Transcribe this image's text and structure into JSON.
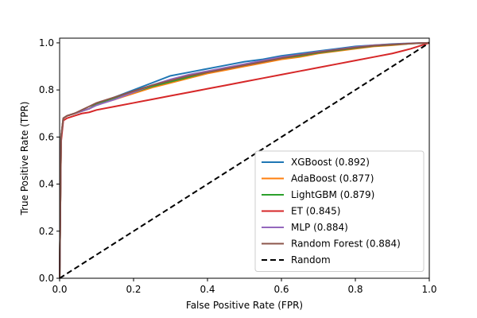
{
  "chart_data": {
    "type": "line",
    "xlabel": "False Positive Rate (FPR)",
    "ylabel": "True Positive Rate (TPR)",
    "xlim": [
      0,
      1
    ],
    "ylim": [
      0,
      1.02
    ],
    "xticks": [
      "0.0",
      "0.2",
      "0.4",
      "0.6",
      "0.8",
      "1.0"
    ],
    "yticks": [
      "0.0",
      "0.2",
      "0.4",
      "0.6",
      "0.8",
      "1.0"
    ],
    "grid": false,
    "legend_position": "lower-right",
    "series": [
      {
        "name": "XGBoost (0.892)",
        "color": "#1f77b4",
        "style": "solid",
        "x": [
          0,
          0.004,
          0.01,
          0.02,
          0.04,
          0.06,
          0.08,
          0.1,
          0.15,
          0.2,
          0.25,
          0.3,
          0.35,
          0.4,
          0.45,
          0.5,
          0.55,
          0.6,
          0.65,
          0.7,
          0.75,
          0.8,
          0.85,
          0.9,
          0.95,
          1.0
        ],
        "y": [
          0,
          0.6,
          0.68,
          0.69,
          0.7,
          0.71,
          0.72,
          0.74,
          0.77,
          0.8,
          0.83,
          0.86,
          0.875,
          0.89,
          0.905,
          0.92,
          0.93,
          0.945,
          0.955,
          0.965,
          0.975,
          0.985,
          0.99,
          0.995,
          0.998,
          1.0
        ]
      },
      {
        "name": "AdaBoost (0.877)",
        "color": "#ff7f0e",
        "style": "solid",
        "x": [
          0,
          0.004,
          0.01,
          0.02,
          0.04,
          0.06,
          0.08,
          0.1,
          0.15,
          0.2,
          0.25,
          0.3,
          0.35,
          0.4,
          0.45,
          0.5,
          0.55,
          0.6,
          0.65,
          0.7,
          0.75,
          0.8,
          0.85,
          0.9,
          0.95,
          1.0
        ],
        "y": [
          0,
          0.6,
          0.68,
          0.69,
          0.7,
          0.71,
          0.72,
          0.74,
          0.76,
          0.785,
          0.81,
          0.83,
          0.85,
          0.87,
          0.885,
          0.9,
          0.915,
          0.93,
          0.94,
          0.955,
          0.965,
          0.975,
          0.985,
          0.99,
          0.997,
          1.0
        ]
      },
      {
        "name": "LightGBM (0.879)",
        "color": "#2ca02c",
        "style": "solid",
        "x": [
          0,
          0.004,
          0.01,
          0.02,
          0.04,
          0.06,
          0.08,
          0.1,
          0.15,
          0.2,
          0.25,
          0.3,
          0.35,
          0.4,
          0.45,
          0.5,
          0.55,
          0.6,
          0.65,
          0.7,
          0.75,
          0.8,
          0.85,
          0.9,
          0.95,
          1.0
        ],
        "y": [
          0,
          0.6,
          0.68,
          0.69,
          0.7,
          0.71,
          0.72,
          0.74,
          0.765,
          0.79,
          0.815,
          0.835,
          0.855,
          0.875,
          0.89,
          0.905,
          0.92,
          0.935,
          0.945,
          0.958,
          0.968,
          0.978,
          0.987,
          0.992,
          0.997,
          1.0
        ]
      },
      {
        "name": "ET (0.845)",
        "color": "#d62728",
        "style": "solid",
        "x": [
          0,
          0.004,
          0.01,
          0.02,
          0.04,
          0.06,
          0.08,
          0.1,
          0.15,
          0.2,
          0.25,
          0.3,
          0.35,
          0.4,
          0.45,
          0.5,
          0.55,
          0.6,
          0.65,
          0.7,
          0.75,
          0.8,
          0.85,
          0.9,
          0.95,
          1.0
        ],
        "y": [
          0,
          0.58,
          0.67,
          0.68,
          0.69,
          0.7,
          0.705,
          0.715,
          0.73,
          0.745,
          0.76,
          0.775,
          0.79,
          0.805,
          0.82,
          0.835,
          0.85,
          0.865,
          0.88,
          0.895,
          0.91,
          0.925,
          0.94,
          0.955,
          0.975,
          1.0
        ]
      },
      {
        "name": "MLP (0.884)",
        "color": "#9467bd",
        "style": "solid",
        "x": [
          0,
          0.004,
          0.01,
          0.02,
          0.04,
          0.06,
          0.08,
          0.1,
          0.15,
          0.2,
          0.25,
          0.3,
          0.35,
          0.4,
          0.45,
          0.5,
          0.55,
          0.6,
          0.65,
          0.7,
          0.75,
          0.8,
          0.85,
          0.9,
          0.95,
          1.0
        ],
        "y": [
          0,
          0.6,
          0.68,
          0.69,
          0.7,
          0.71,
          0.72,
          0.735,
          0.76,
          0.79,
          0.82,
          0.845,
          0.865,
          0.88,
          0.895,
          0.91,
          0.925,
          0.94,
          0.95,
          0.962,
          0.972,
          0.982,
          0.99,
          0.994,
          0.998,
          1.0
        ]
      },
      {
        "name": "Random Forest (0.884)",
        "color": "#8c564b",
        "style": "solid",
        "x": [
          0,
          0.004,
          0.01,
          0.02,
          0.04,
          0.06,
          0.08,
          0.1,
          0.15,
          0.2,
          0.25,
          0.3,
          0.35,
          0.4,
          0.45,
          0.5,
          0.55,
          0.6,
          0.65,
          0.7,
          0.75,
          0.8,
          0.85,
          0.9,
          0.95,
          1.0
        ],
        "y": [
          0,
          0.6,
          0.68,
          0.69,
          0.7,
          0.715,
          0.73,
          0.745,
          0.77,
          0.795,
          0.82,
          0.84,
          0.86,
          0.875,
          0.89,
          0.905,
          0.92,
          0.935,
          0.948,
          0.96,
          0.97,
          0.98,
          0.988,
          0.993,
          0.997,
          1.0
        ]
      },
      {
        "name": "Random",
        "color": "#000000",
        "style": "dashed",
        "x": [
          0,
          1
        ],
        "y": [
          0,
          1
        ]
      }
    ]
  }
}
